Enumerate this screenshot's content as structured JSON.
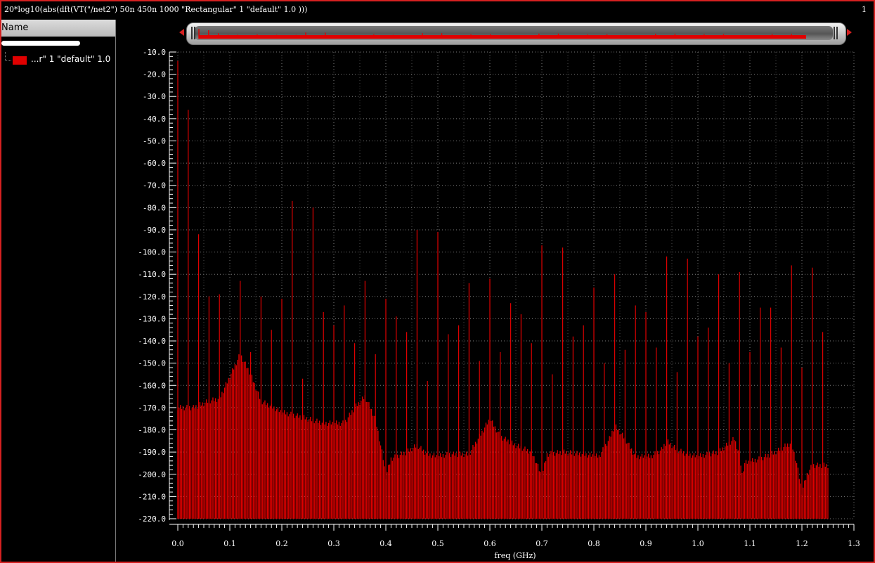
{
  "window": {
    "title": "20*log10(abs(dft(VT(\"/net2\") 50n 450n 1000 \"Rectangular\" 1 \"default\" 1.0 )))",
    "subwindow_number": "1"
  },
  "legend_panel": {
    "header": "Name",
    "trace_label": "...r\" 1 \"default\" 1.0",
    "trace_color": "#e00000"
  },
  "colors": {
    "accent": "#d42020",
    "trace": "#e00000",
    "background": "#000000",
    "grid": "#7a7a7a"
  },
  "chart_data": {
    "type": "bar",
    "title": "",
    "xlabel": "freq (GHz)",
    "ylabel": "",
    "xlim": [
      0.0,
      1.3
    ],
    "ylim": [
      -220.0,
      -10.0
    ],
    "xticks": [
      "0.0",
      "0.1",
      "0.2",
      "0.3",
      "0.4",
      "0.5",
      "0.6",
      "0.7",
      "0.8",
      "0.9",
      "1.0",
      "1.1",
      "1.2",
      "1.3"
    ],
    "yticks": [
      "-10.0",
      "-20.0",
      "-30.0",
      "-40.0",
      "-50.0",
      "-60.0",
      "-70.0",
      "-80.0",
      "-90.0",
      "-100.0",
      "-110.0",
      "-120.0",
      "-130.0",
      "-140.0",
      "-150.0",
      "-160.0",
      "-170.0",
      "-180.0",
      "-190.0",
      "-200.0",
      "-210.0",
      "-220.0"
    ],
    "grid": true,
    "bin_spacing": 0.0025,
    "freq_range": [
      0.0,
      1.25
    ],
    "noise_floor_envelope": [
      [
        0.0,
        -170
      ],
      [
        0.03,
        -170
      ],
      [
        0.06,
        -167
      ],
      [
        0.08,
        -166
      ],
      [
        0.1,
        -156
      ],
      [
        0.12,
        -146
      ],
      [
        0.14,
        -155
      ],
      [
        0.16,
        -167
      ],
      [
        0.2,
        -172
      ],
      [
        0.25,
        -175
      ],
      [
        0.28,
        -177
      ],
      [
        0.32,
        -177
      ],
      [
        0.34,
        -170
      ],
      [
        0.36,
        -165
      ],
      [
        0.38,
        -175
      ],
      [
        0.395,
        -193
      ],
      [
        0.4,
        -201
      ],
      [
        0.41,
        -193
      ],
      [
        0.44,
        -190
      ],
      [
        0.46,
        -187
      ],
      [
        0.48,
        -191
      ],
      [
        0.5,
        -192
      ],
      [
        0.52,
        -191
      ],
      [
        0.56,
        -191
      ],
      [
        0.58,
        -183
      ],
      [
        0.6,
        -175
      ],
      [
        0.62,
        -183
      ],
      [
        0.65,
        -187
      ],
      [
        0.68,
        -190
      ],
      [
        0.69,
        -195
      ],
      [
        0.7,
        -201
      ],
      [
        0.71,
        -191
      ],
      [
        0.74,
        -190
      ],
      [
        0.78,
        -191
      ],
      [
        0.81,
        -192
      ],
      [
        0.83,
        -184
      ],
      [
        0.84,
        -178
      ],
      [
        0.86,
        -184
      ],
      [
        0.88,
        -192
      ],
      [
        0.91,
        -192
      ],
      [
        0.93,
        -189
      ],
      [
        0.94,
        -185
      ],
      [
        0.96,
        -189
      ],
      [
        0.98,
        -191
      ],
      [
        1.0,
        -192
      ],
      [
        1.04,
        -190
      ],
      [
        1.07,
        -184
      ],
      [
        1.08,
        -191
      ],
      [
        1.085,
        -200
      ],
      [
        1.09,
        -195
      ],
      [
        1.12,
        -193
      ],
      [
        1.15,
        -190
      ],
      [
        1.17,
        -187
      ],
      [
        1.18,
        -186
      ],
      [
        1.19,
        -195
      ],
      [
        1.2,
        -208
      ],
      [
        1.21,
        -200
      ],
      [
        1.22,
        -196
      ],
      [
        1.25,
        -196
      ]
    ],
    "spurs": [
      {
        "x": 0.0,
        "y": -14
      },
      {
        "x": 0.02,
        "y": -36
      },
      {
        "x": 0.04,
        "y": -92
      },
      {
        "x": 0.06,
        "y": -120
      },
      {
        "x": 0.08,
        "y": -119
      },
      {
        "x": 0.12,
        "y": -113
      },
      {
        "x": 0.14,
        "y": -145
      },
      {
        "x": 0.16,
        "y": -120
      },
      {
        "x": 0.18,
        "y": -135
      },
      {
        "x": 0.2,
        "y": -121
      },
      {
        "x": 0.22,
        "y": -77
      },
      {
        "x": 0.24,
        "y": -157
      },
      {
        "x": 0.26,
        "y": -80
      },
      {
        "x": 0.28,
        "y": -127
      },
      {
        "x": 0.3,
        "y": -133
      },
      {
        "x": 0.32,
        "y": -124
      },
      {
        "x": 0.34,
        "y": -141
      },
      {
        "x": 0.36,
        "y": -113
      },
      {
        "x": 0.38,
        "y": -146
      },
      {
        "x": 0.4,
        "y": -121
      },
      {
        "x": 0.42,
        "y": -129
      },
      {
        "x": 0.44,
        "y": -136
      },
      {
        "x": 0.46,
        "y": -90
      },
      {
        "x": 0.48,
        "y": -158
      },
      {
        "x": 0.5,
        "y": -91
      },
      {
        "x": 0.52,
        "y": -137
      },
      {
        "x": 0.54,
        "y": -133
      },
      {
        "x": 0.56,
        "y": -114
      },
      {
        "x": 0.58,
        "y": -149
      },
      {
        "x": 0.6,
        "y": -112
      },
      {
        "x": 0.62,
        "y": -145
      },
      {
        "x": 0.64,
        "y": -123
      },
      {
        "x": 0.66,
        "y": -128
      },
      {
        "x": 0.68,
        "y": -141
      },
      {
        "x": 0.7,
        "y": -97
      },
      {
        "x": 0.72,
        "y": -155
      },
      {
        "x": 0.74,
        "y": -98
      },
      {
        "x": 0.76,
        "y": -138
      },
      {
        "x": 0.78,
        "y": -133
      },
      {
        "x": 0.8,
        "y": -116
      },
      {
        "x": 0.82,
        "y": -150
      },
      {
        "x": 0.84,
        "y": -110
      },
      {
        "x": 0.86,
        "y": -144
      },
      {
        "x": 0.88,
        "y": -124
      },
      {
        "x": 0.9,
        "y": -127
      },
      {
        "x": 0.92,
        "y": -143
      },
      {
        "x": 0.94,
        "y": -102
      },
      {
        "x": 0.96,
        "y": -154
      },
      {
        "x": 0.98,
        "y": -103
      },
      {
        "x": 1.0,
        "y": -138
      },
      {
        "x": 1.02,
        "y": -134
      },
      {
        "x": 1.04,
        "y": -110
      },
      {
        "x": 1.06,
        "y": -150
      },
      {
        "x": 1.08,
        "y": -109
      },
      {
        "x": 1.1,
        "y": -145
      },
      {
        "x": 1.12,
        "y": -125
      },
      {
        "x": 1.14,
        "y": -125
      },
      {
        "x": 1.16,
        "y": -143
      },
      {
        "x": 1.18,
        "y": -106
      },
      {
        "x": 1.2,
        "y": -152
      },
      {
        "x": 1.22,
        "y": -107
      },
      {
        "x": 1.24,
        "y": -136
      }
    ]
  }
}
